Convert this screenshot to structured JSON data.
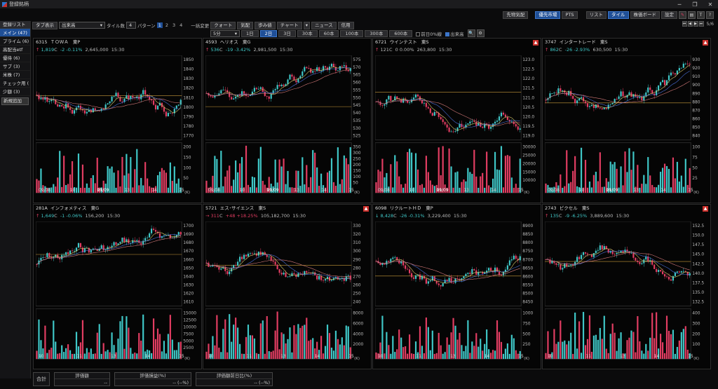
{
  "window": {
    "title": "登録銘柄",
    "controls": [
      "─",
      "❐",
      "✕"
    ]
  },
  "topbar": {
    "buttons": [
      {
        "label": "先物気配",
        "state": "normal"
      },
      {
        "label": "優先市場",
        "state": "active"
      },
      {
        "label": "PTS",
        "state": "normal"
      },
      {
        "label": "リスト",
        "state": "normal"
      },
      {
        "label": "タイル",
        "state": "active"
      },
      {
        "label": "株価ボード",
        "state": "normal"
      },
      {
        "label": "設定",
        "state": "normal"
      }
    ],
    "icons": [
      "pen-icon",
      "book-icon",
      "T",
      "?"
    ]
  },
  "controls": {
    "tab_display_btn": "タブ表示",
    "sort_value": "出来高",
    "tile_count_label": "タイル数",
    "tile_count_value": "4",
    "pattern_label": "パターン",
    "patterns": [
      "1",
      "2",
      "3",
      "4"
    ],
    "bulk_label": "一括変更",
    "bulk_buttons": [
      "クォート",
      "気配",
      "歩み値",
      "チャート",
      "ニュース",
      "信用"
    ],
    "interval_value": "5分",
    "ranges": [
      "1日",
      "2日",
      "3日",
      "30本",
      "60本",
      "100本",
      "300本",
      "600本"
    ],
    "active_range": "2日",
    "check_prevday": "前日0%線",
    "check_volume": "出来高",
    "page": "5/6"
  },
  "sidebar": {
    "header": "登録リスト",
    "items": [
      {
        "label": "メイン (47)",
        "active": true
      },
      {
        "label": "プライム (6)",
        "active": false
      },
      {
        "label": "高配当etf",
        "active": false
      },
      {
        "label": "優待 (6)",
        "active": false
      },
      {
        "label": "サブ (3)",
        "active": false
      },
      {
        "label": "米株 (7)",
        "active": false
      },
      {
        "label": "チェック用 (",
        "active": false
      },
      {
        "label": "少額 (3)",
        "active": false
      }
    ],
    "add_button": "新規追加"
  },
  "panels": [
    {
      "code": "6315",
      "name": "ＴＯＷＡ",
      "market": "東P",
      "arrow": "↑",
      "price": "1,819",
      "flag": "C",
      "change": "-2",
      "pct": "-0.11%",
      "volume": "2,645,000",
      "time": "15:30",
      "dir": "up",
      "chg_dir": "dn",
      "alert": false,
      "yticks": [
        "1850",
        "1840",
        "1830",
        "1820",
        "1810",
        "1800",
        "1790",
        "1780",
        "1770"
      ],
      "vticks": [
        "200",
        "150",
        "100",
        "50"
      ],
      "xticks": [
        "09/08",
        "10",
        "11",
        "13",
        "14",
        "15"
      ],
      "date2": "09/09"
    },
    {
      "code": "4593",
      "name": "ヘリオス",
      "market": "東G",
      "arrow": "↑",
      "price": "536",
      "flag": "C",
      "change": "-19",
      "pct": "-3.42%",
      "volume": "2,981,500",
      "time": "15:30",
      "dir": "up",
      "chg_dir": "dn",
      "alert": false,
      "yticks": [
        "575",
        "570",
        "565",
        "560",
        "555",
        "550",
        "545",
        "540",
        "535",
        "530",
        "525"
      ],
      "vticks": [
        "350",
        "300",
        "250",
        "200",
        "150",
        "100",
        "50"
      ],
      "xticks": [
        "09/08",
        "10",
        "11",
        "13",
        "14",
        "15"
      ],
      "date2": "09/09"
    },
    {
      "code": "6721",
      "name": "ウインテスト",
      "market": "東S",
      "arrow": "↑",
      "price": "121",
      "flag": "C",
      "change": "0",
      "pct": "0.00%",
      "volume": "263,800",
      "time": "15:30",
      "dir": "up",
      "chg_dir": "neu",
      "alert": true,
      "yticks": [
        "123.0",
        "122.5",
        "122.0",
        "121.5",
        "121.0",
        "120.5",
        "120.0",
        "119.5",
        "119.0"
      ],
      "vticks": [
        "30000",
        "25000",
        "20000",
        "15000",
        "10000"
      ],
      "xticks": [
        "09/08",
        "10",
        "11",
        "13",
        "14",
        "15"
      ],
      "date2": "09/09"
    },
    {
      "code": "3747",
      "name": "インタートレード",
      "market": "東S",
      "arrow": "↑",
      "price": "862",
      "flag": "C",
      "change": "-26",
      "pct": "-2.93%",
      "volume": "630,500",
      "time": "15:30",
      "dir": "up",
      "chg_dir": "dn",
      "alert": true,
      "yticks": [
        "930",
        "920",
        "910",
        "900",
        "890",
        "880",
        "870",
        "860",
        "850",
        "840"
      ],
      "vticks": [
        "100",
        "75",
        "50",
        "25"
      ],
      "xticks": [
        "09/08",
        "10",
        "11",
        "13",
        "14",
        "15"
      ],
      "date2": "09/09"
    },
    {
      "code": "281A",
      "name": "インフォメティス",
      "market": "東G",
      "arrow": "↑",
      "price": "1,649",
      "flag": "C",
      "change": "-1",
      "pct": "-0.06%",
      "volume": "156,200",
      "time": "15:30",
      "dir": "up",
      "chg_dir": "dn",
      "alert": false,
      "yticks": [
        "1700",
        "1690",
        "1680",
        "1670",
        "1660",
        "1650",
        "1640",
        "1630",
        "1620",
        "1610"
      ],
      "vticks": [
        "15000",
        "12500",
        "10000",
        "7500",
        "5000",
        "2500"
      ],
      "xticks": [
        "10",
        "11",
        "13",
        "14",
        "15"
      ],
      "date2": ""
    },
    {
      "code": "5721",
      "name": "エス･サイエンス",
      "market": "東S",
      "arrow": "→",
      "price": "311",
      "flag": "C",
      "change": "+48",
      "pct": "+18.25%",
      "volume": "105,182,700",
      "time": "15:30",
      "dir": "up",
      "chg_dir": "up",
      "alert": true,
      "yticks": [
        "330",
        "320",
        "310",
        "300",
        "290",
        "280",
        "270",
        "260",
        "250",
        "240"
      ],
      "vticks": [
        "8000",
        "6000",
        "4000",
        "2000"
      ],
      "xticks": [
        "10",
        "11",
        "13",
        "14",
        "15"
      ],
      "date2": ""
    },
    {
      "code": "6098",
      "name": "リクルートＨＤ",
      "market": "東P",
      "arrow": "↓",
      "price": "8,428",
      "flag": "C",
      "change": "-26",
      "pct": "-0.31%",
      "volume": "3,229,400",
      "time": "15:30",
      "dir": "dn",
      "chg_dir": "dn",
      "alert": false,
      "yticks": [
        "8900",
        "8850",
        "8800",
        "8750",
        "8700",
        "8650",
        "8600",
        "8550",
        "8500",
        "8450"
      ],
      "vticks": [
        "1000",
        "750",
        "500",
        "250"
      ],
      "xticks": [
        "10",
        "11",
        "13",
        "14",
        "15"
      ],
      "date2": ""
    },
    {
      "code": "2743",
      "name": "ピクセル",
      "market": "東S",
      "arrow": "↑",
      "price": "135",
      "flag": "C",
      "change": "-9",
      "pct": "-6.25%",
      "volume": "3,889,600",
      "time": "15:30",
      "dir": "up",
      "chg_dir": "dn",
      "alert": true,
      "yticks": [
        "152.5",
        "150.0",
        "147.5",
        "145.0",
        "142.5",
        "140.0",
        "137.5",
        "135.0",
        "132.5"
      ],
      "vticks": [
        "400",
        "300",
        "200",
        "100"
      ],
      "xticks": [
        "10",
        "11",
        "13",
        "14",
        "15"
      ],
      "date2": ""
    }
  ],
  "footer": {
    "label": "合計",
    "col1": "評価額",
    "col2": "評価損益(%)",
    "col3": "評価額前日比(%)",
    "val1": "--",
    "val2": "-- (--%)",
    "val3": "-- (--%)"
  },
  "colors": {
    "up": "#e23d62",
    "down": "#3fc7c7",
    "ma1": "#d8c76a",
    "ma2": "#4a6fd8",
    "ma3": "#d57a7a",
    "baseline": "#c99a3a"
  }
}
